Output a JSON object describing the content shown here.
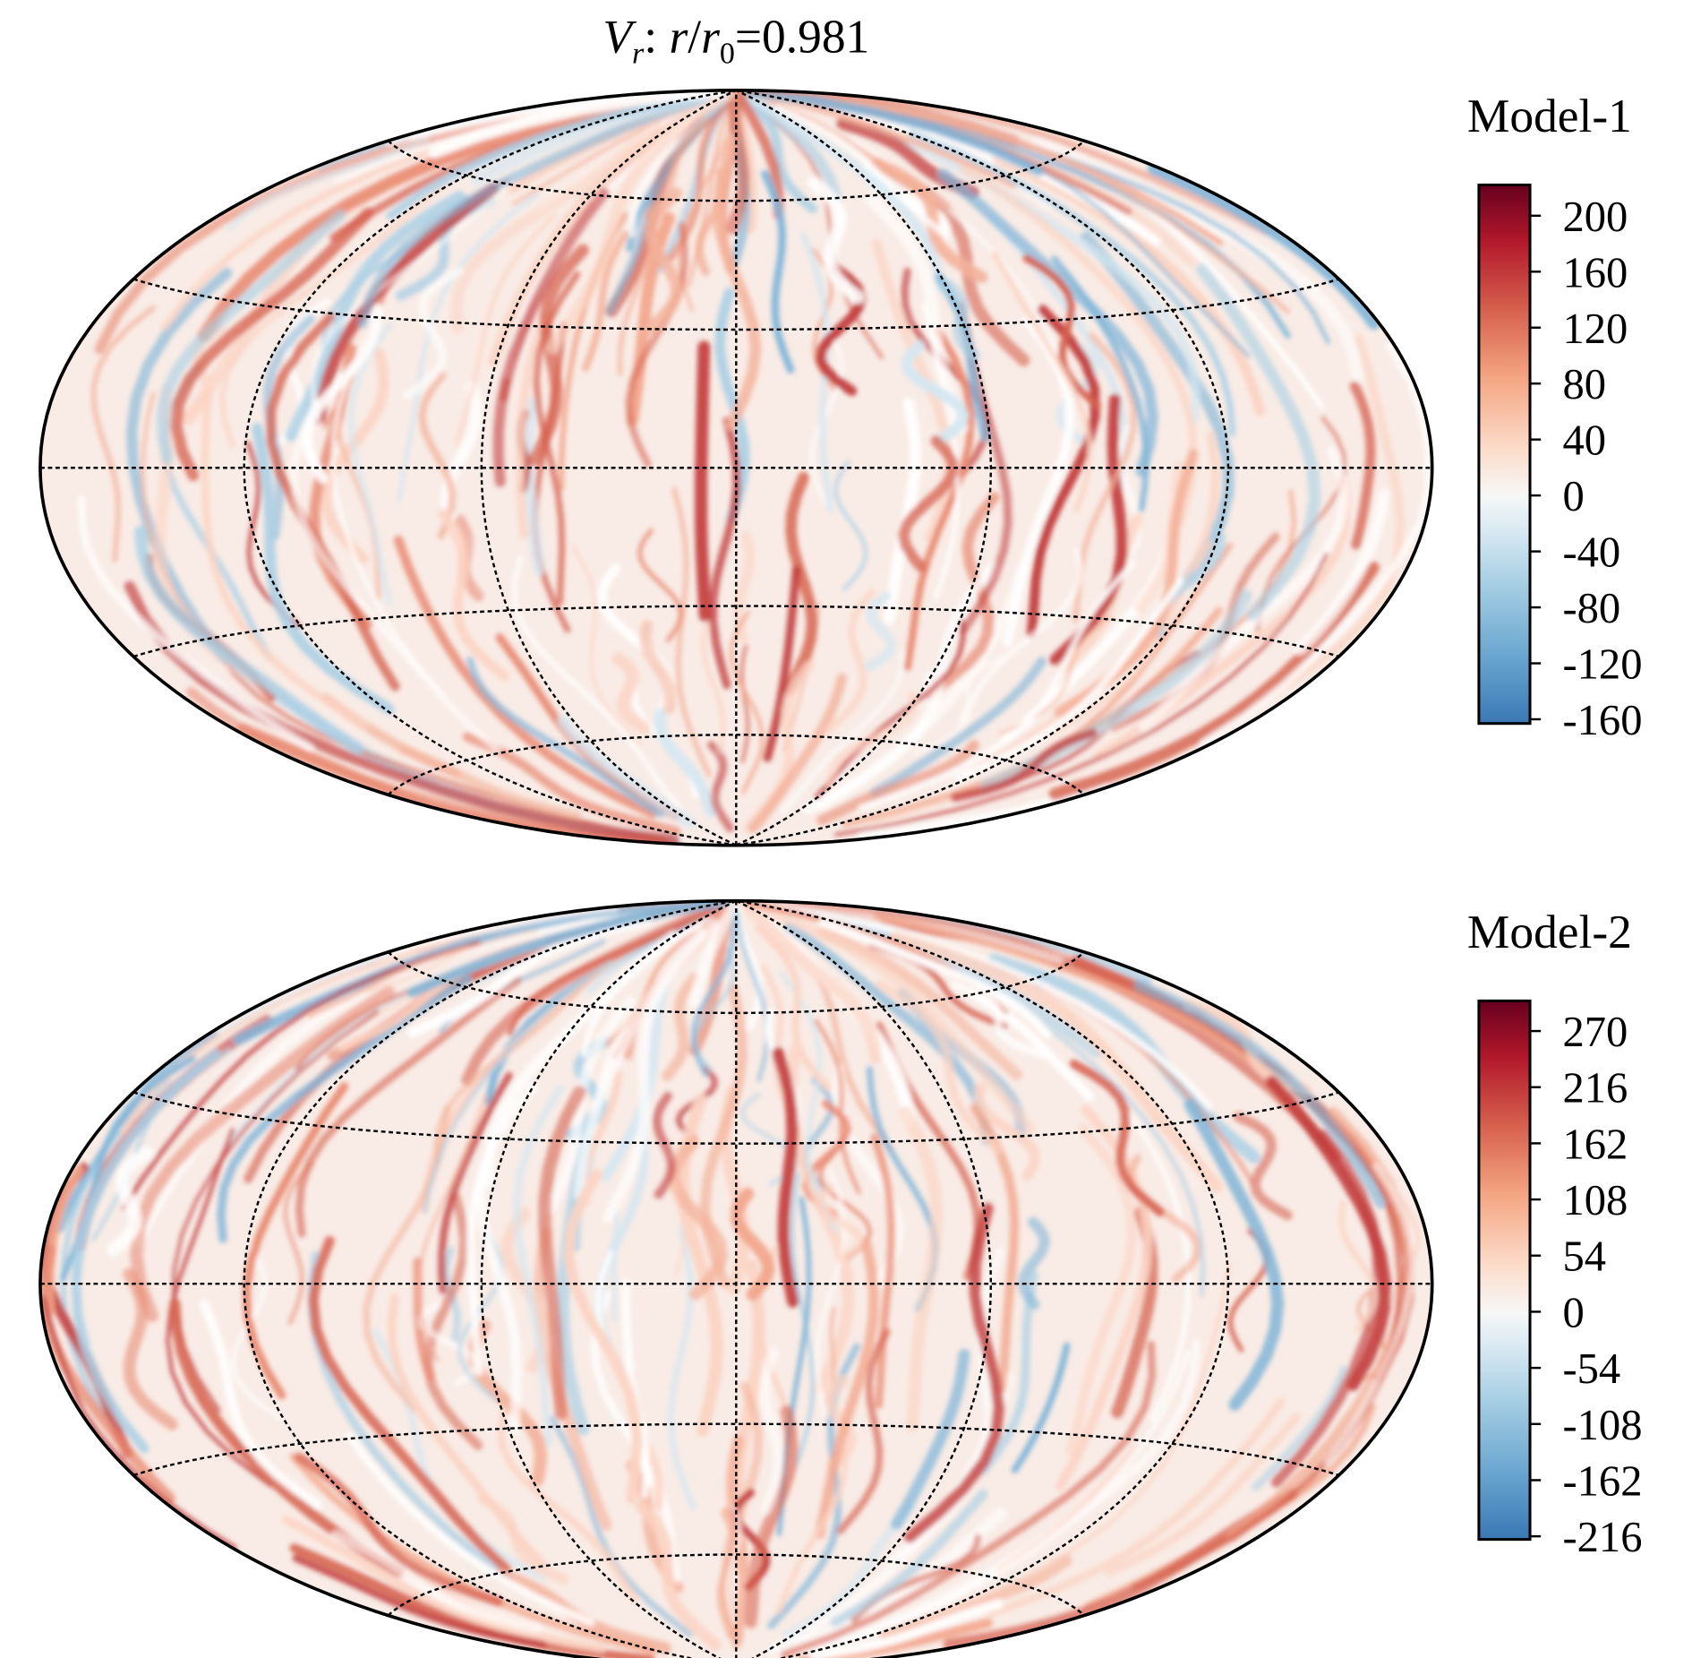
{
  "chart_data": [
    {
      "type": "map",
      "projection": "hammer",
      "title": [
        {
          "text": "V",
          "style": "italic"
        },
        {
          "text": "r",
          "style": "italic-sub"
        },
        {
          "text": ": "
        },
        {
          "text": "r",
          "style": "italic"
        },
        {
          "text": "/"
        },
        {
          "text": "r",
          "style": "italic"
        },
        {
          "text": "0",
          "style": "sub"
        },
        {
          "text": "=0.981"
        }
      ],
      "label": "Model-1",
      "colorbar": {
        "clim": [
          -163,
          222
        ],
        "ticks": [
          200,
          160,
          120,
          80,
          40,
          0,
          -40,
          -80,
          -120,
          -160
        ]
      }
    },
    {
      "type": "map",
      "projection": "hammer",
      "label": "Model-2",
      "colorbar": {
        "clim": [
          -219,
          299
        ],
        "ticks": [
          270,
          216,
          162,
          108,
          54,
          0,
          -54,
          -108,
          -162,
          -216
        ]
      }
    }
  ]
}
